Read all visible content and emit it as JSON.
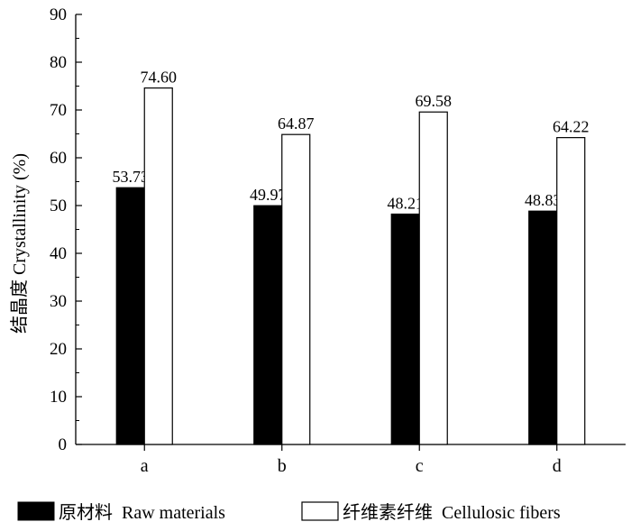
{
  "chart_data": {
    "type": "bar",
    "categories": [
      "a",
      "b",
      "c",
      "d"
    ],
    "series": [
      {
        "name": "原材料  Raw materials",
        "values": [
          53.73,
          49.97,
          48.21,
          48.83
        ],
        "data_labels": [
          "53.73",
          "49.97",
          "48.21",
          "48.83"
        ],
        "fill": "#000000"
      },
      {
        "name": "纤维素纤维  Cellulosic fibers",
        "values": [
          74.6,
          64.87,
          69.58,
          64.22
        ],
        "data_labels": [
          "74.60",
          "64.87",
          "69.58",
          "64.22"
        ],
        "fill": "#ffffff"
      }
    ],
    "ylabel": "结晶度  Crystallinity (%)",
    "xlabel": "",
    "ylim": [
      0,
      90
    ],
    "yticks": [
      "0",
      "10",
      "20",
      "30",
      "40",
      "50",
      "60",
      "70",
      "80",
      "90"
    ],
    "grid": false,
    "legend_position": "bottom"
  }
}
